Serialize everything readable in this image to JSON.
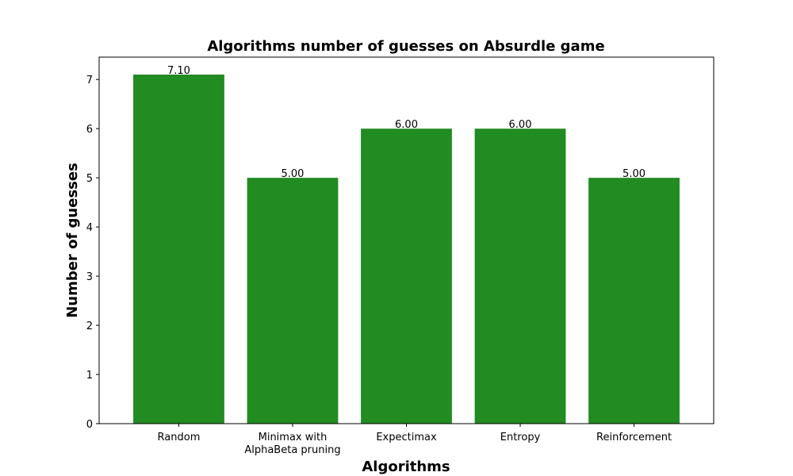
{
  "chart_data": {
    "type": "bar",
    "title": "Algorithms number of guesses on Absurdle game",
    "xlabel": "Algorithms",
    "ylabel": "Number of guesses",
    "categories": [
      [
        "Random"
      ],
      [
        "Minimax with",
        "AlphaBeta pruning"
      ],
      [
        "Expectimax"
      ],
      [
        "Entropy"
      ],
      [
        "Reinforcement"
      ]
    ],
    "values": [
      7.1,
      5.0,
      6.0,
      6.0,
      5.0
    ],
    "data_labels": [
      "7.10",
      "5.00",
      "6.00",
      "6.00",
      "5.00"
    ],
    "ylim": [
      0,
      7.455
    ],
    "yticks": [
      0,
      1,
      2,
      3,
      4,
      5,
      6,
      7
    ],
    "bar_color": "#228b22",
    "grid": false,
    "legend": "none"
  }
}
